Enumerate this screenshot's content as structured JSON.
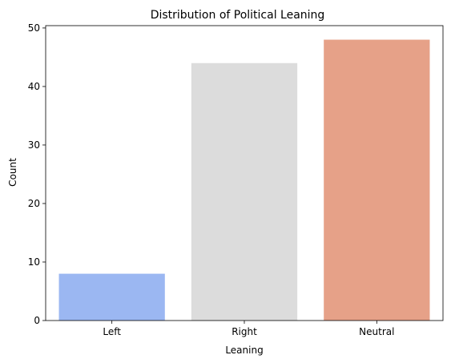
{
  "chart_data": {
    "type": "bar",
    "title": "Distribution of Political Leaning",
    "xlabel": "Leaning",
    "ylabel": "Count",
    "categories": [
      "Left",
      "Right",
      "Neutral"
    ],
    "values": [
      8,
      44,
      48
    ],
    "colors": [
      "#9bb7f2",
      "#dcdcdc",
      "#e6a188"
    ],
    "ylim": [
      0,
      50.4
    ],
    "yticks": [
      0,
      10,
      20,
      30,
      40,
      50
    ],
    "grid": false
  }
}
